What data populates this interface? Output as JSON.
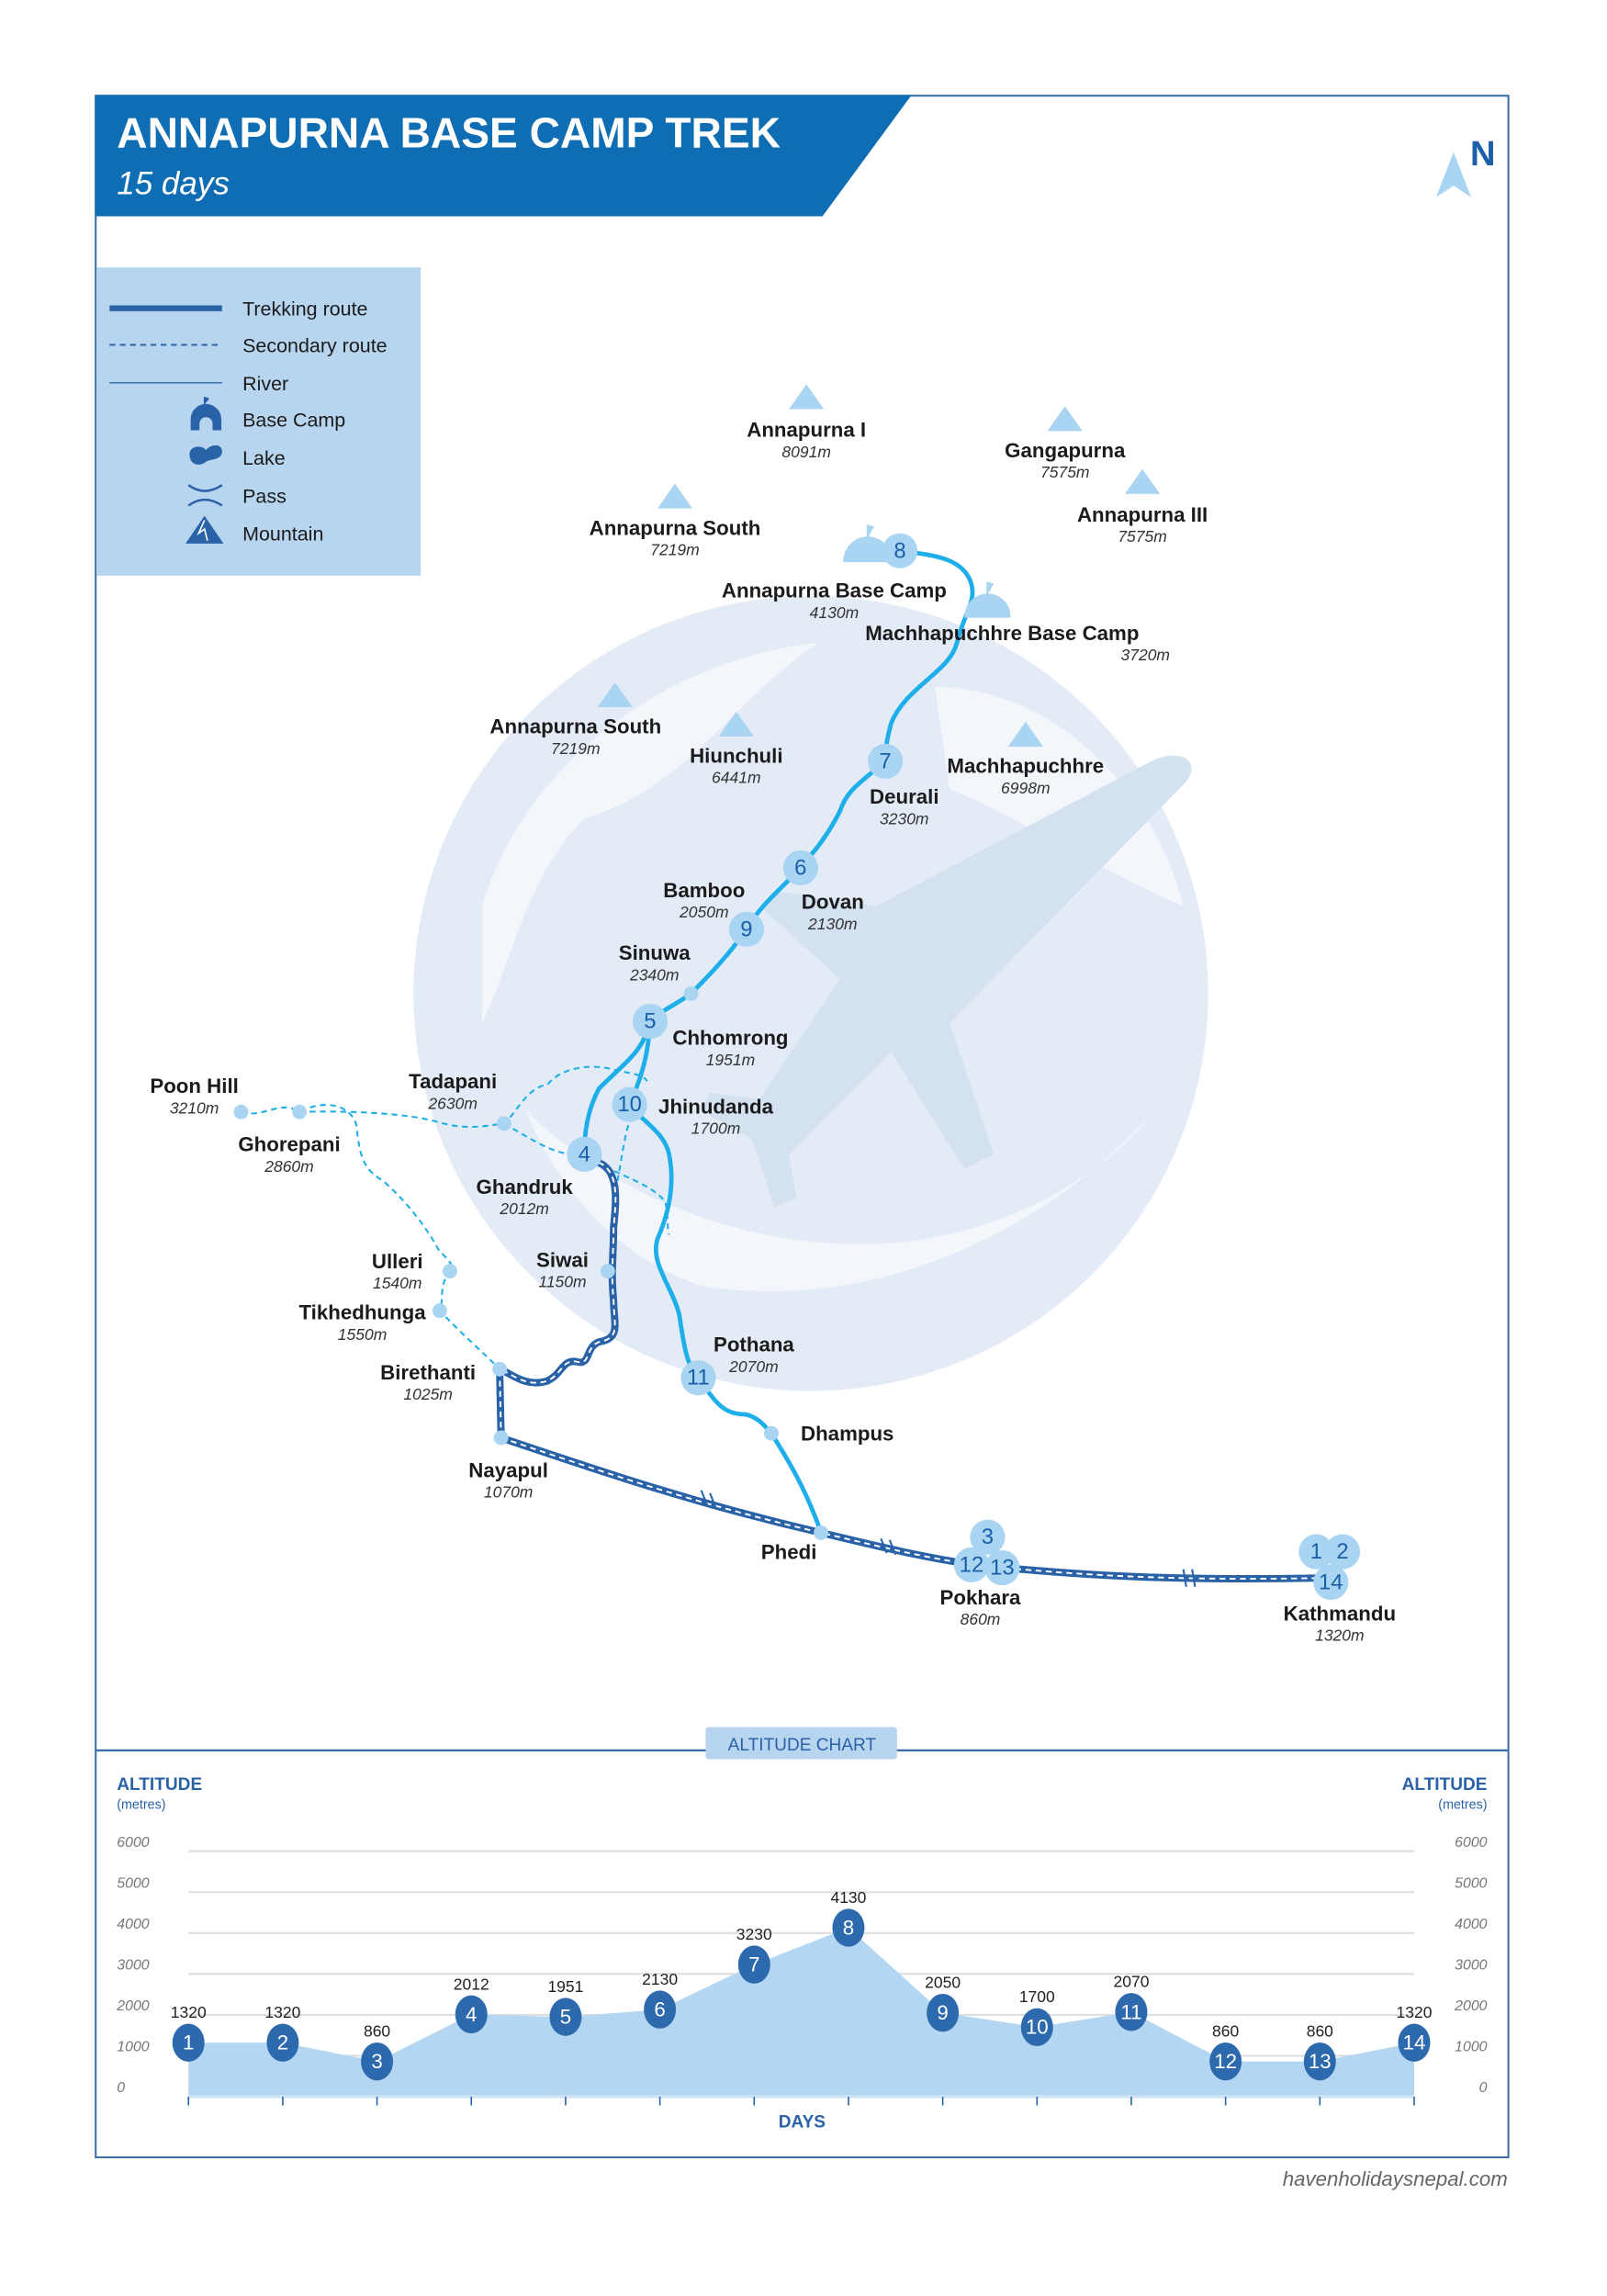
{
  "header": {
    "title": "ANNAPURNA BASE CAMP TREK",
    "subtitle": "15 days",
    "north": "N"
  },
  "colors": {
    "brand": "#0f6db3",
    "route": "#1eaeea",
    "road": "#2a62a8",
    "stop": "#a9d4f2",
    "legend_bg": "#b8d5f0",
    "area": "#b3d6f2",
    "marker": "#2d6aad"
  },
  "legend": [
    {
      "label": "Trekking route",
      "icon": "solid-line"
    },
    {
      "label": "Secondary route",
      "icon": "dashed-line"
    },
    {
      "label": "River",
      "icon": "thin-line"
    },
    {
      "label": "Base Camp",
      "icon": "base-camp-icon"
    },
    {
      "label": "Lake",
      "icon": "lake-icon"
    },
    {
      "label": "Pass",
      "icon": "pass-icon"
    },
    {
      "label": "Mountain",
      "icon": "mountain-icon"
    }
  ],
  "mountains": [
    {
      "name": "Annapurna I",
      "alt": "8091m"
    },
    {
      "name": "Gangapurna",
      "alt": "7575m"
    },
    {
      "name": "Annapurna III",
      "alt": "7575m"
    },
    {
      "name": "Annapurna South",
      "alt": "7219m"
    },
    {
      "name": "Annapurna South",
      "alt": "7219m"
    },
    {
      "name": "Hiunchuli",
      "alt": "6441m"
    },
    {
      "name": "Machhapuchhre",
      "alt": "6998m"
    }
  ],
  "places": {
    "abc": {
      "name": "Annapurna Base Camp",
      "alt": "4130m"
    },
    "mbc": {
      "name": "Machhapuchhre Base Camp",
      "alt": "3720m"
    },
    "deurali": {
      "name": "Deurali",
      "alt": "3230m"
    },
    "dovan": {
      "name": "Dovan",
      "alt": "2130m"
    },
    "bamboo": {
      "name": "Bamboo",
      "alt": "2050m"
    },
    "sinuwa": {
      "name": "Sinuwa",
      "alt": "2340m"
    },
    "chhomrong": {
      "name": "Chhomrong",
      "alt": "1951m"
    },
    "jhinudanda": {
      "name": "Jhinudanda",
      "alt": "1700m"
    },
    "tadapani": {
      "name": "Tadapani",
      "alt": "2630m"
    },
    "poonhill": {
      "name": "Poon Hill",
      "alt": "3210m"
    },
    "ghorepani": {
      "name": "Ghorepani",
      "alt": "2860m"
    },
    "ghandruk": {
      "name": "Ghandruk",
      "alt": "2012m"
    },
    "siwai": {
      "name": "Siwai",
      "alt": "1150m"
    },
    "ulleri": {
      "name": "Ulleri",
      "alt": "1540m"
    },
    "tikhedhunga": {
      "name": "Tikhedhunga",
      "alt": "1550m"
    },
    "birethanti": {
      "name": "Birethanti",
      "alt": "1025m"
    },
    "pothana": {
      "name": "Pothana",
      "alt": "2070m"
    },
    "dhampus": {
      "name": "Dhampus"
    },
    "nayapul": {
      "name": "Nayapul",
      "alt": "1070m"
    },
    "phedi": {
      "name": "Phedi"
    },
    "pokhara": {
      "name": "Pokhara",
      "alt": "860m"
    },
    "kathmandu": {
      "name": "Kathmandu",
      "alt": "1320m"
    }
  },
  "day_markers": [
    "1",
    "2",
    "3",
    "4",
    "5",
    "6",
    "7",
    "8",
    "9",
    "10",
    "11",
    "12",
    "13",
    "14"
  ],
  "chart_badge": "ALTITUDE CHART",
  "chart_data": {
    "type": "area",
    "ylabel": "ALTITUDE",
    "ylabel_unit": "(metres)",
    "xlabel": "DAYS",
    "ylim": [
      0,
      6000
    ],
    "yticks": [
      "0",
      "1000",
      "2000",
      "3000",
      "4000",
      "5000",
      "6000"
    ],
    "grid": true,
    "x": [
      1,
      2,
      3,
      4,
      5,
      6,
      7,
      8,
      9,
      10,
      11,
      12,
      13,
      14
    ],
    "values": [
      1320,
      1320,
      860,
      2012,
      1951,
      2130,
      3230,
      4130,
      2050,
      1700,
      2070,
      860,
      860,
      1320
    ]
  },
  "footer": "havenholidaysnepal.com"
}
